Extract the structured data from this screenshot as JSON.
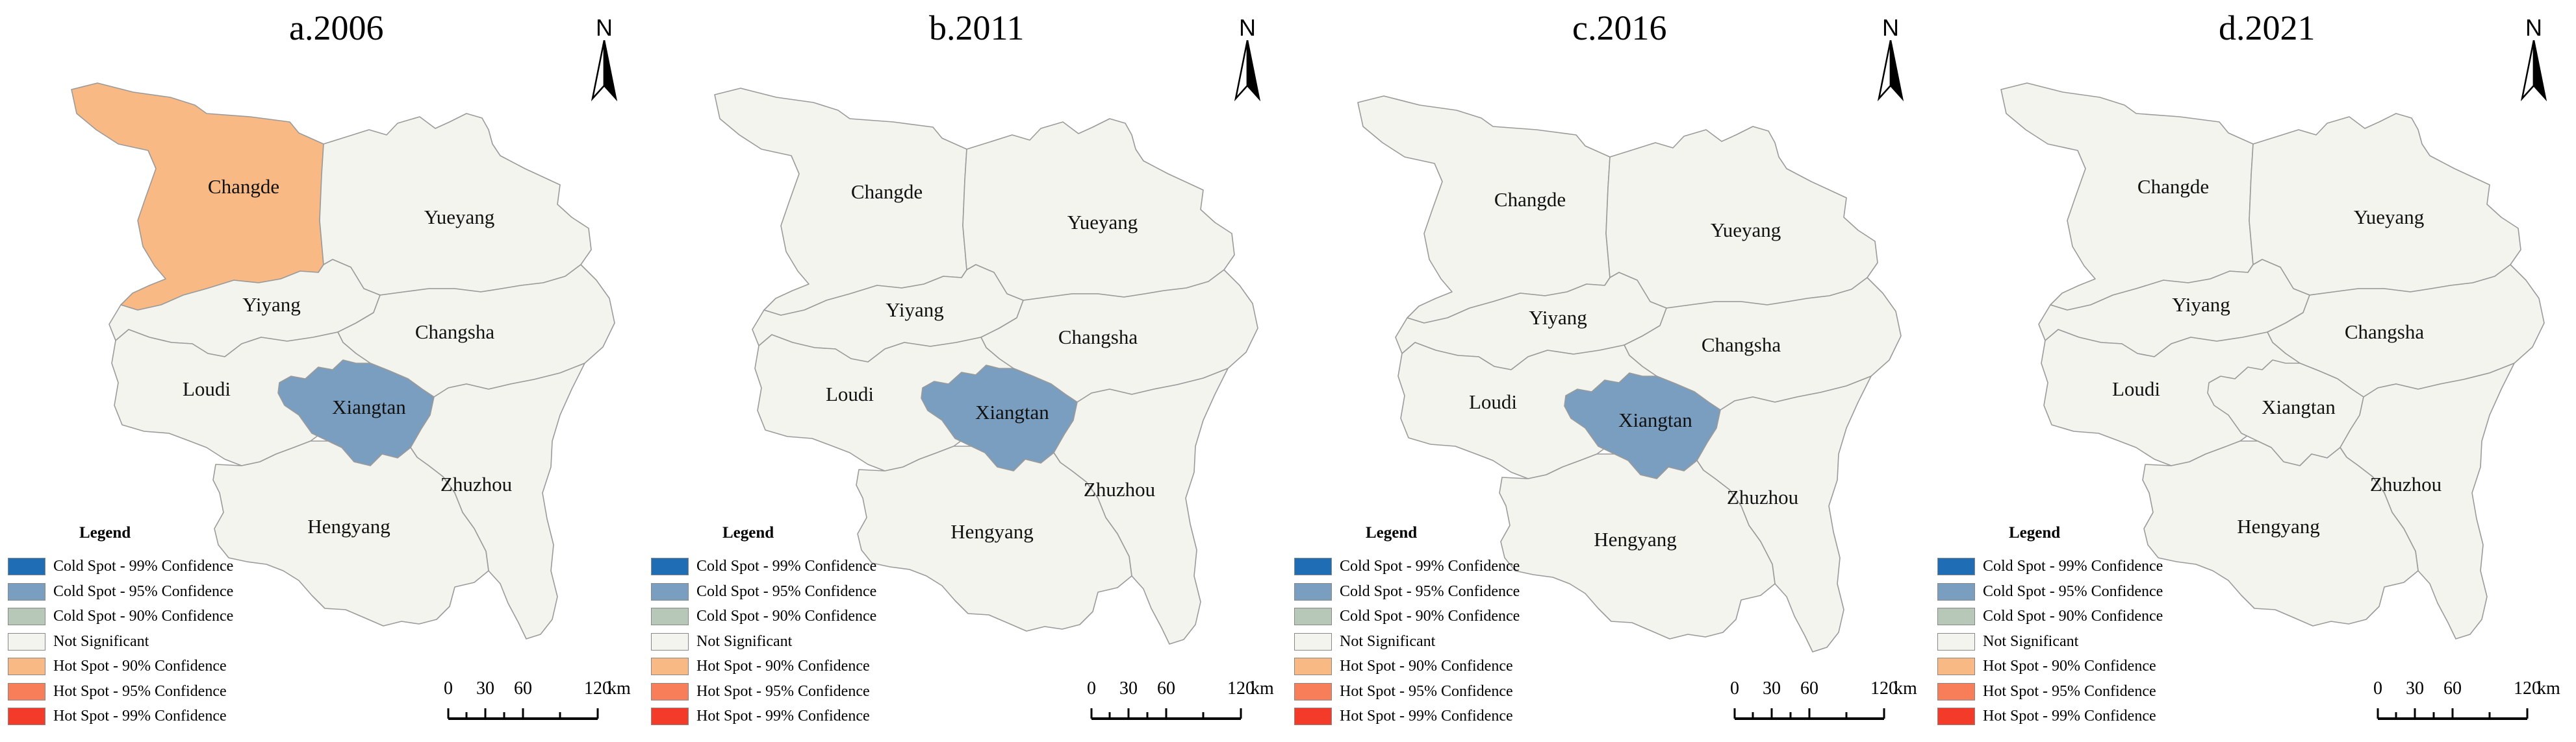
{
  "colors": {
    "cold99": "#1f6db5",
    "cold95": "#7a9ebf",
    "cold90": "#b7c8b9",
    "not_significant": "#f4f4ef",
    "hot90": "#f9b985",
    "hot95": "#f87e5a",
    "hot99": "#f43b2a",
    "border": "#9a9a9a"
  },
  "legend": {
    "title": "Legend",
    "items": [
      {
        "label": "Cold Spot - 99% Confidence",
        "class": "cold99"
      },
      {
        "label": "Cold Spot - 95% Confidence",
        "class": "cold95"
      },
      {
        "label": "Cold Spot - 90% Confidence",
        "class": "cold90"
      },
      {
        "label": "Not Significant",
        "class": "not_significant"
      },
      {
        "label": "Hot Spot - 90% Confidence",
        "class": "hot90"
      },
      {
        "label": "Hot Spot - 95% Confidence",
        "class": "hot95"
      },
      {
        "label": "Hot Spot - 99% Confidence",
        "class": "hot99"
      }
    ]
  },
  "north_label": "N",
  "scale": {
    "ticks": [
      "0",
      "30",
      "60",
      "120"
    ],
    "unit": "km"
  },
  "maps": [
    {
      "title": "a.2006",
      "classes": {
        "Changde": "hot90",
        "Yueyang": "not_significant",
        "Yiyang": "not_significant",
        "Changsha": "not_significant",
        "Loudi": "not_significant",
        "Xiangtan": "cold95",
        "Zhuzhou": "not_significant",
        "Hengyang": "not_significant"
      }
    },
    {
      "title": "b.2011",
      "classes": {
        "Changde": "not_significant",
        "Yueyang": "not_significant",
        "Yiyang": "not_significant",
        "Changsha": "not_significant",
        "Loudi": "not_significant",
        "Xiangtan": "cold95",
        "Zhuzhou": "not_significant",
        "Hengyang": "not_significant"
      }
    },
    {
      "title": "c.2016",
      "classes": {
        "Changde": "not_significant",
        "Yueyang": "not_significant",
        "Yiyang": "not_significant",
        "Changsha": "not_significant",
        "Loudi": "not_significant",
        "Xiangtan": "cold95",
        "Zhuzhou": "not_significant",
        "Hengyang": "not_significant"
      }
    },
    {
      "title": "d.2021",
      "classes": {
        "Changde": "not_significant",
        "Yueyang": "not_significant",
        "Yiyang": "not_significant",
        "Changsha": "not_significant",
        "Loudi": "not_significant",
        "Xiangtan": "not_significant",
        "Zhuzhou": "not_significant",
        "Hengyang": "not_significant"
      }
    }
  ],
  "regions": [
    "Changde",
    "Yueyang",
    "Yiyang",
    "Changsha",
    "Loudi",
    "Xiangtan",
    "Zhuzhou",
    "Hengyang"
  ]
}
